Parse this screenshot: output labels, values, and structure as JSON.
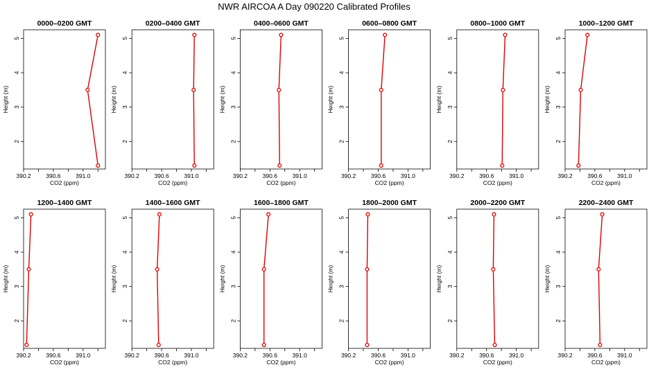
{
  "page_title": "NWR AIRCOA A  Day 090220  Calibrated Profiles",
  "colors": {
    "line": "#dd0000",
    "frame": "#000000"
  },
  "chart_data": [
    {
      "type": "line",
      "title": "0000–0200 GMT",
      "xlabel": "CO2 (ppm)",
      "ylabel": "Height (m)",
      "xlim": [
        390.2,
        391.3
      ],
      "ylim": [
        1.2,
        5.25
      ],
      "xticks": [
        "390.2",
        "390.6",
        "391.0"
      ],
      "yticks": [
        "2",
        "3",
        "4",
        "5"
      ],
      "points": [
        {
          "x": 391.2,
          "y": 1.3
        },
        {
          "x": 391.06,
          "y": 3.5
        },
        {
          "x": 391.2,
          "y": 5.1
        }
      ]
    },
    {
      "type": "line",
      "title": "0200–0400 GMT",
      "xlabel": "CO2 (ppm)",
      "ylabel": "Height (m)",
      "xlim": [
        390.2,
        391.3
      ],
      "ylim": [
        1.2,
        5.25
      ],
      "xticks": [
        "390.2",
        "390.6",
        "391.0"
      ],
      "yticks": [
        "2",
        "3",
        "4",
        "5"
      ],
      "points": [
        {
          "x": 391.04,
          "y": 1.3
        },
        {
          "x": 391.03,
          "y": 3.5
        },
        {
          "x": 391.04,
          "y": 5.1
        }
      ]
    },
    {
      "type": "line",
      "title": "0400–0600 GMT",
      "xlabel": "CO2 (ppm)",
      "ylabel": "Height (m)",
      "xlim": [
        390.2,
        391.3
      ],
      "ylim": [
        1.2,
        5.25
      ],
      "xticks": [
        "390.2",
        "390.6",
        "391.0"
      ],
      "yticks": [
        "2",
        "3",
        "4",
        "5"
      ],
      "points": [
        {
          "x": 390.73,
          "y": 1.3
        },
        {
          "x": 390.72,
          "y": 3.5
        },
        {
          "x": 390.75,
          "y": 5.1
        }
      ]
    },
    {
      "type": "line",
      "title": "0600–0800 GMT",
      "xlabel": "CO2 (ppm)",
      "ylabel": "Height (m)",
      "xlim": [
        390.2,
        391.3
      ],
      "ylim": [
        1.2,
        5.25
      ],
      "xticks": [
        "390.2",
        "390.6",
        "391.0"
      ],
      "yticks": [
        "2",
        "3",
        "4",
        "5"
      ],
      "points": [
        {
          "x": 390.64,
          "y": 1.3
        },
        {
          "x": 390.64,
          "y": 3.5
        },
        {
          "x": 390.69,
          "y": 5.1
        }
      ]
    },
    {
      "type": "line",
      "title": "0800–1000 GMT",
      "xlabel": "CO2 (ppm)",
      "ylabel": "Height (m)",
      "xlim": [
        390.2,
        391.3
      ],
      "ylim": [
        1.2,
        5.25
      ],
      "xticks": [
        "390.2",
        "390.6",
        "391.0"
      ],
      "yticks": [
        "2",
        "3",
        "4",
        "5"
      ],
      "points": [
        {
          "x": 390.81,
          "y": 1.3
        },
        {
          "x": 390.82,
          "y": 3.5
        },
        {
          "x": 390.85,
          "y": 5.1
        }
      ]
    },
    {
      "type": "line",
      "title": "1000–1200 GMT",
      "xlabel": "CO2 (ppm)",
      "ylabel": "Height (m)",
      "xlim": [
        390.2,
        391.3
      ],
      "ylim": [
        1.2,
        5.25
      ],
      "xticks": [
        "390.2",
        "390.6",
        "391.0"
      ],
      "yticks": [
        "2",
        "3",
        "4",
        "5"
      ],
      "points": [
        {
          "x": 390.38,
          "y": 1.3
        },
        {
          "x": 390.41,
          "y": 3.5
        },
        {
          "x": 390.5,
          "y": 5.1
        }
      ]
    },
    {
      "type": "line",
      "title": "1200–1400 GMT",
      "xlabel": "CO2 (ppm)",
      "ylabel": "Height (m)",
      "xlim": [
        390.2,
        391.3
      ],
      "ylim": [
        1.2,
        5.25
      ],
      "xticks": [
        "390.2",
        "390.6",
        "391.0"
      ],
      "yticks": [
        "2",
        "3",
        "4",
        "5"
      ],
      "points": [
        {
          "x": 390.24,
          "y": 1.3
        },
        {
          "x": 390.27,
          "y": 3.5
        },
        {
          "x": 390.3,
          "y": 5.1
        }
      ]
    },
    {
      "type": "line",
      "title": "1400–1600 GMT",
      "xlabel": "CO2 (ppm)",
      "ylabel": "Height (m)",
      "xlim": [
        390.2,
        391.3
      ],
      "ylim": [
        1.2,
        5.25
      ],
      "xticks": [
        "390.2",
        "390.6",
        "391.0"
      ],
      "yticks": [
        "2",
        "3",
        "4",
        "5"
      ],
      "points": [
        {
          "x": 390.56,
          "y": 1.3
        },
        {
          "x": 390.54,
          "y": 3.5
        },
        {
          "x": 390.57,
          "y": 5.1
        }
      ]
    },
    {
      "type": "line",
      "title": "1600–1800 GMT",
      "xlabel": "CO2 (ppm)",
      "ylabel": "Height (m)",
      "xlim": [
        390.2,
        391.3
      ],
      "ylim": [
        1.2,
        5.25
      ],
      "xticks": [
        "390.2",
        "390.6",
        "391.0"
      ],
      "yticks": [
        "2",
        "3",
        "4",
        "5"
      ],
      "points": [
        {
          "x": 390.52,
          "y": 1.3
        },
        {
          "x": 390.52,
          "y": 3.5
        },
        {
          "x": 390.58,
          "y": 5.1
        }
      ]
    },
    {
      "type": "line",
      "title": "1800–2000 GMT",
      "xlabel": "CO2 (ppm)",
      "ylabel": "Height (m)",
      "xlim": [
        390.2,
        391.3
      ],
      "ylim": [
        1.2,
        5.25
      ],
      "xticks": [
        "390.2",
        "390.6",
        "391.0"
      ],
      "yticks": [
        "2",
        "3",
        "4",
        "5"
      ],
      "points": [
        {
          "x": 390.45,
          "y": 1.3
        },
        {
          "x": 390.45,
          "y": 3.5
        },
        {
          "x": 390.46,
          "y": 5.1
        }
      ]
    },
    {
      "type": "line",
      "title": "2000–2200 GMT",
      "xlabel": "CO2 (ppm)",
      "ylabel": "Height (m)",
      "xlim": [
        390.2,
        391.3
      ],
      "ylim": [
        1.2,
        5.25
      ],
      "xticks": [
        "390.2",
        "390.6",
        "391.0"
      ],
      "yticks": [
        "2",
        "3",
        "4",
        "5"
      ],
      "points": [
        {
          "x": 390.71,
          "y": 1.3
        },
        {
          "x": 390.69,
          "y": 3.5
        },
        {
          "x": 390.7,
          "y": 5.1
        }
      ]
    },
    {
      "type": "line",
      "title": "2200–2400 GMT",
      "xlabel": "CO2 (ppm)",
      "ylabel": "Height (m)",
      "xlim": [
        390.2,
        391.3
      ],
      "ylim": [
        1.2,
        5.25
      ],
      "xticks": [
        "390.2",
        "390.6",
        "391.0"
      ],
      "yticks": [
        "2",
        "3",
        "4",
        "5"
      ],
      "points": [
        {
          "x": 390.67,
          "y": 1.3
        },
        {
          "x": 390.65,
          "y": 3.5
        },
        {
          "x": 390.7,
          "y": 5.1
        }
      ]
    }
  ]
}
